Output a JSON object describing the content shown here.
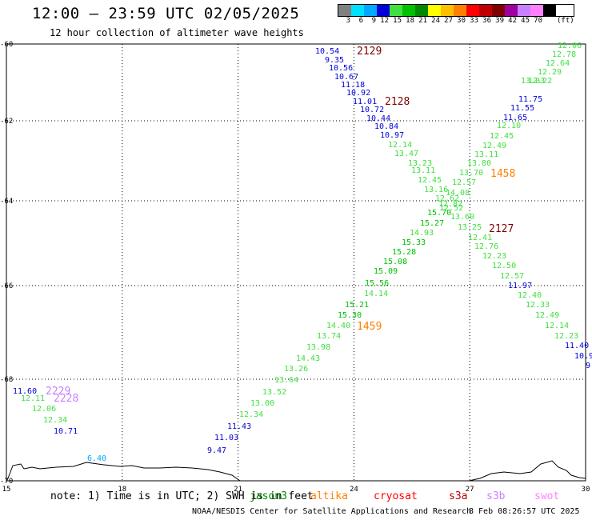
{
  "header": {
    "title": "12:00 – 23:59 UTC 02/05/2025",
    "subtitle": "12 hour collection of altimeter wave heights"
  },
  "legend": {
    "unit": "(ft)",
    "items": [
      {
        "label": "3",
        "color": "#808080"
      },
      {
        "label": "6",
        "color": "#00e0ff"
      },
      {
        "label": "9",
        "color": "#00a8ff"
      },
      {
        "label": "12",
        "color": "#0000d8"
      },
      {
        "label": "15",
        "color": "#40e040"
      },
      {
        "label": "18",
        "color": "#00c000"
      },
      {
        "label": "21",
        "color": "#008800"
      },
      {
        "label": "24",
        "color": "#ffff00"
      },
      {
        "label": "27",
        "color": "#ffc000"
      },
      {
        "label": "30",
        "color": "#ff8000"
      },
      {
        "label": "33",
        "color": "#ff0000"
      },
      {
        "label": "36",
        "color": "#c00000"
      },
      {
        "label": "39",
        "color": "#800000"
      },
      {
        "label": "42",
        "color": "#a000a0"
      },
      {
        "label": "45",
        "color": "#c880ff"
      },
      {
        "label": "70",
        "color": "#ff80ff"
      },
      {
        "label": "",
        "color": "#000000"
      }
    ]
  },
  "axes": {
    "lat_ticks": [
      {
        "value": -60,
        "label": "-60"
      },
      {
        "value": -62,
        "label": "-62"
      },
      {
        "value": -64,
        "label": "-64"
      },
      {
        "value": -66,
        "label": "-66"
      },
      {
        "value": -68,
        "label": "-68"
      },
      {
        "value": -70,
        "label": "-70"
      }
    ],
    "lon_ticks": [
      {
        "value": 15,
        "label": "15"
      },
      {
        "value": 18,
        "label": "18"
      },
      {
        "value": 21,
        "label": "21"
      },
      {
        "value": 24,
        "label": "24"
      },
      {
        "value": 27,
        "label": "27"
      },
      {
        "value": 30,
        "label": "30"
      }
    ]
  },
  "track_labels": [
    {
      "text": "2129",
      "color": "#800000"
    },
    {
      "text": "2128",
      "color": "#800000"
    },
    {
      "text": "1458",
      "color": "#ff8000"
    },
    {
      "text": "2127",
      "color": "#800000"
    },
    {
      "text": "1459",
      "color": "#ff8000"
    },
    {
      "text": "2229",
      "color": "#c880ff"
    },
    {
      "text": "2228",
      "color": "#c880ff"
    }
  ],
  "observations": [
    {
      "text": "10.54",
      "color": "#0000d8"
    },
    {
      "text": "9.35",
      "color": "#0000d8"
    },
    {
      "text": "10.56",
      "color": "#0000d8"
    },
    {
      "text": "10.67",
      "color": "#0000d8"
    },
    {
      "text": "11.18",
      "color": "#0000d8"
    },
    {
      "text": "10.92",
      "color": "#0000d8"
    },
    {
      "text": "11.01",
      "color": "#0000d8"
    },
    {
      "text": "10.72",
      "color": "#0000d8"
    },
    {
      "text": "10.44",
      "color": "#0000d8"
    },
    {
      "text": "10.84",
      "color": "#0000d8"
    },
    {
      "text": "10.97",
      "color": "#0000d8"
    },
    {
      "text": "12.14",
      "color": "#40e040"
    },
    {
      "text": "13.47",
      "color": "#40e040"
    },
    {
      "text": "13.23",
      "color": "#40e040"
    },
    {
      "text": "13.11",
      "color": "#40e040"
    },
    {
      "text": "12.45",
      "color": "#40e040"
    },
    {
      "text": "13.16",
      "color": "#40e040"
    },
    {
      "text": "12.62",
      "color": "#40e040"
    },
    {
      "text": "12.52",
      "color": "#40e040"
    },
    {
      "text": "13.60",
      "color": "#40e040"
    },
    {
      "text": "13.25",
      "color": "#40e040"
    },
    {
      "text": "12.41",
      "color": "#40e040"
    },
    {
      "text": "12.76",
      "color": "#40e040"
    },
    {
      "text": "12.23",
      "color": "#40e040"
    },
    {
      "text": "12.50",
      "color": "#40e040"
    },
    {
      "text": "12.57",
      "color": "#40e040"
    },
    {
      "text": "11.97",
      "color": "#0000d8"
    },
    {
      "text": "12.40",
      "color": "#40e040"
    },
    {
      "text": "12.33",
      "color": "#40e040"
    },
    {
      "text": "12.49",
      "color": "#40e040"
    },
    {
      "text": "12.14",
      "color": "#40e040"
    },
    {
      "text": "12.23",
      "color": "#40e040"
    },
    {
      "text": "11.40",
      "color": "#0000d8"
    },
    {
      "text": "10.9",
      "color": "#0000d8"
    },
    {
      "text": "9",
      "color": "#0000d8"
    },
    {
      "text": "12.06",
      "color": "#40e040"
    },
    {
      "text": "12.78",
      "color": "#40e040"
    },
    {
      "text": "12.64",
      "color": "#40e040"
    },
    {
      "text": "12.29",
      "color": "#40e040"
    },
    {
      "text": "12.22",
      "color": "#40e040"
    },
    {
      "text": "13.03",
      "color": "#40e040"
    },
    {
      "text": "11.75",
      "color": "#0000d8"
    },
    {
      "text": "11.55",
      "color": "#0000d8"
    },
    {
      "text": "11.65",
      "color": "#0000d8"
    },
    {
      "text": "12.10",
      "color": "#40e040"
    },
    {
      "text": "12.45",
      "color": "#40e040"
    },
    {
      "text": "12.49",
      "color": "#40e040"
    },
    {
      "text": "13.11",
      "color": "#40e040"
    },
    {
      "text": "13.80",
      "color": "#40e040"
    },
    {
      "text": "13.70",
      "color": "#40e040"
    },
    {
      "text": "12.57",
      "color": "#40e040"
    },
    {
      "text": "14.08",
      "color": "#40e040"
    },
    {
      "text": "12.82",
      "color": "#40e040"
    },
    {
      "text": "15.70",
      "color": "#00c000"
    },
    {
      "text": "15.27",
      "color": "#00c000"
    },
    {
      "text": "14.93",
      "color": "#40e040"
    },
    {
      "text": "15.33",
      "color": "#00c000"
    },
    {
      "text": "15.28",
      "color": "#00c000"
    },
    {
      "text": "15.08",
      "color": "#00c000"
    },
    {
      "text": "15.09",
      "color": "#00c000"
    },
    {
      "text": "15.56",
      "color": "#00c000"
    },
    {
      "text": "14.14",
      "color": "#40e040"
    },
    {
      "text": "15.21",
      "color": "#00c000"
    },
    {
      "text": "15.30",
      "color": "#00c000"
    },
    {
      "text": "14.40",
      "color": "#40e040"
    },
    {
      "text": "13.74",
      "color": "#40e040"
    },
    {
      "text": "13.98",
      "color": "#40e040"
    },
    {
      "text": "14.43",
      "color": "#40e040"
    },
    {
      "text": "13.26",
      "color": "#40e040"
    },
    {
      "text": "13.64",
      "color": "#40e040"
    },
    {
      "text": "13.52",
      "color": "#40e040"
    },
    {
      "text": "13.00",
      "color": "#40e040"
    },
    {
      "text": "12.34",
      "color": "#40e040"
    },
    {
      "text": "11.43",
      "color": "#0000d8"
    },
    {
      "text": "11.03",
      "color": "#0000d8"
    },
    {
      "text": "9.47",
      "color": "#0000d8"
    },
    {
      "text": "6.40",
      "color": "#00a8ff"
    },
    {
      "text": "11.60",
      "color": "#0000d8"
    },
    {
      "text": "12.11",
      "color": "#40e040"
    },
    {
      "text": "12.06",
      "color": "#40e040"
    },
    {
      "text": "12.34",
      "color": "#40e040"
    },
    {
      "text": "10.71",
      "color": "#0000d8"
    }
  ],
  "note": {
    "text": "note: 1) Time is in UTC; 2) SWH is in feet"
  },
  "missions": [
    {
      "label": "jason3",
      "color": "#008800"
    },
    {
      "label": "altika",
      "color": "#ff8000"
    },
    {
      "label": "cryosat",
      "color": "#ff0000"
    },
    {
      "label": "s3a",
      "color": "#c00000"
    },
    {
      "label": "s3b",
      "color": "#c880ff"
    },
    {
      "label": "swot",
      "color": "#ff80ff"
    }
  ],
  "footer": {
    "credit": "NOAA/NESDIS Center for Satellite Applications and Research",
    "timestamp": "8 Feb 08:26:57 UTC 2025"
  }
}
